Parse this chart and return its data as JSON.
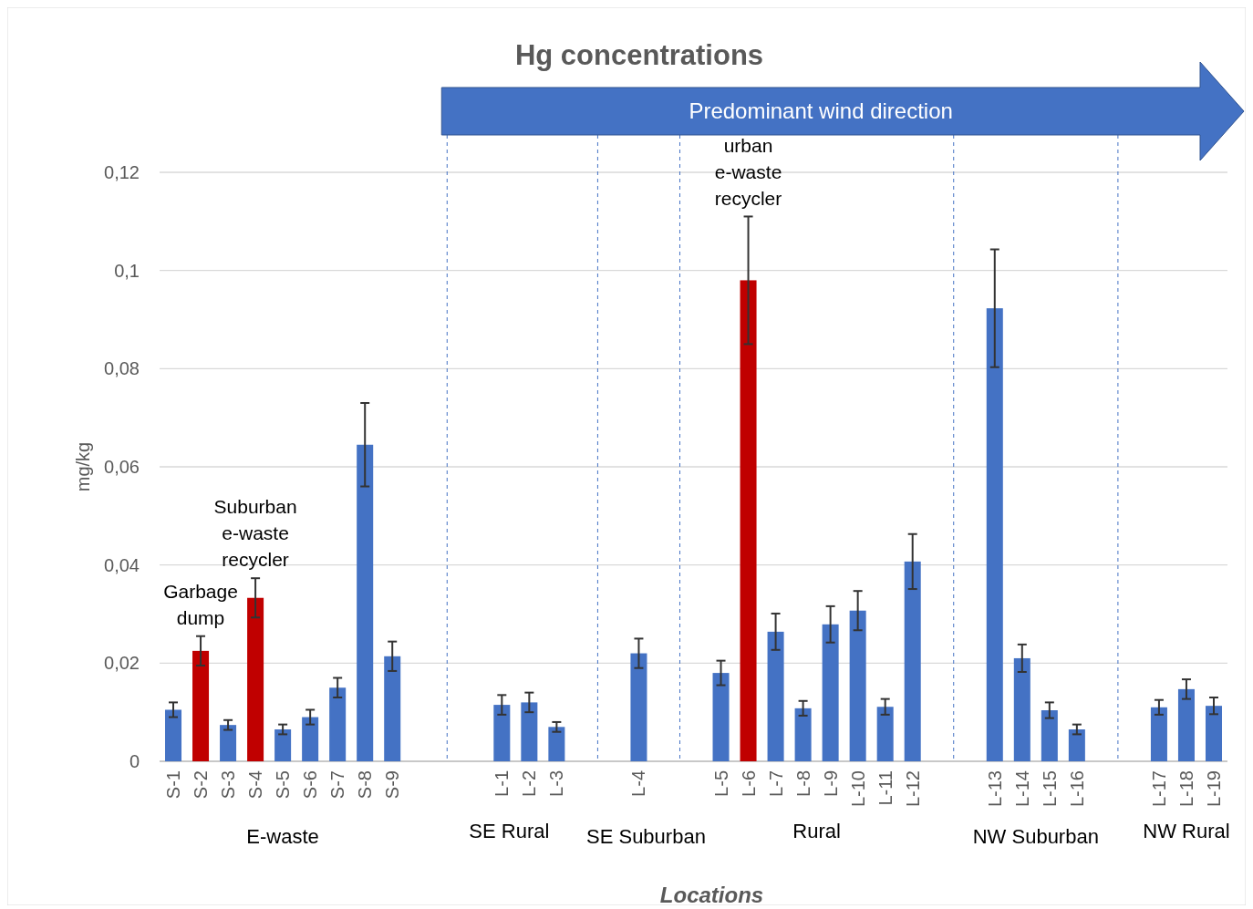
{
  "chart_data": {
    "type": "bar",
    "title": "Hg concentrations",
    "xlabel": "Locations",
    "ylabel": "mg/kg",
    "categories": [
      "S-1",
      "S-2",
      "S-3",
      "S-4",
      "S-5",
      "S-6",
      "S-7",
      "S-8",
      "S-9",
      null,
      null,
      null,
      "L-1",
      "L-2",
      "L-3",
      null,
      null,
      "L-4",
      null,
      null,
      "L-5",
      "L-6",
      "L-7",
      "L-8",
      "L-9",
      "L-10",
      "L-11",
      "L-12",
      null,
      null,
      "L-13",
      "L-14",
      "L-15",
      "L-16",
      null,
      null,
      "L-17",
      "L-18",
      "L-19"
    ],
    "values": [
      0.0105,
      0.0225,
      0.0074,
      0.0333,
      0.0065,
      0.009,
      0.015,
      0.0645,
      0.0214,
      null,
      null,
      null,
      0.0115,
      0.012,
      0.007,
      null,
      null,
      0.022,
      null,
      null,
      0.018,
      0.098,
      0.0264,
      0.0108,
      0.0279,
      0.0307,
      0.0111,
      0.0407,
      null,
      null,
      0.0923,
      0.021,
      0.0104,
      0.0065,
      null,
      null,
      0.011,
      0.0147,
      0.0113
    ],
    "errors": [
      0.0015,
      0.003,
      0.001,
      0.004,
      0.001,
      0.0015,
      0.002,
      0.0085,
      0.003,
      null,
      null,
      null,
      0.002,
      0.002,
      0.001,
      null,
      null,
      0.003,
      null,
      null,
      0.0025,
      0.013,
      0.0037,
      0.0015,
      0.0037,
      0.004,
      0.0016,
      0.0056,
      null,
      null,
      0.012,
      0.0028,
      0.0016,
      0.001,
      null,
      null,
      0.0015,
      0.002,
      0.0017
    ],
    "colors": [
      "#4472c4",
      "#c00000",
      "#4472c4",
      "#c00000",
      "#4472c4",
      "#4472c4",
      "#4472c4",
      "#4472c4",
      "#4472c4",
      null,
      null,
      null,
      "#4472c4",
      "#4472c4",
      "#4472c4",
      null,
      null,
      "#4472c4",
      null,
      null,
      "#4472c4",
      "#c00000",
      "#4472c4",
      "#4472c4",
      "#4472c4",
      "#4472c4",
      "#4472c4",
      "#4472c4",
      null,
      null,
      "#4472c4",
      "#4472c4",
      "#4472c4",
      "#4472c4",
      null,
      null,
      "#4472c4",
      "#4472c4",
      "#4472c4"
    ],
    "ylim": [
      0,
      0.12
    ],
    "yticks": [
      0,
      {
        "value": 0.02,
        "label": "0,02"
      },
      {
        "value": 0.04,
        "label": "0,04"
      },
      {
        "value": 0.06,
        "label": "0,06"
      },
      {
        "value": 0.08,
        "label": "0,08"
      },
      {
        "value": 0.1,
        "label": "0,1"
      },
      {
        "value": 0.12,
        "label": "0,12"
      }
    ],
    "grid": true,
    "annotations": [
      "Predominant wind direction",
      {
        "text": "Garbage\ndump",
        "x": "S-2",
        "y": 0.0256
      },
      {
        "text": "Suburban\ne-waste\nrecycler",
        "x": "S-4",
        "y": 0.0375
      },
      {
        "text": "urban\ne-waste\nrecycler",
        "x": "L-6",
        "y": 0.111
      },
      "E-waste",
      "SE Rural",
      "SE Suburban",
      "Rural",
      "NW Suburban",
      "NW Rural"
    ]
  }
}
